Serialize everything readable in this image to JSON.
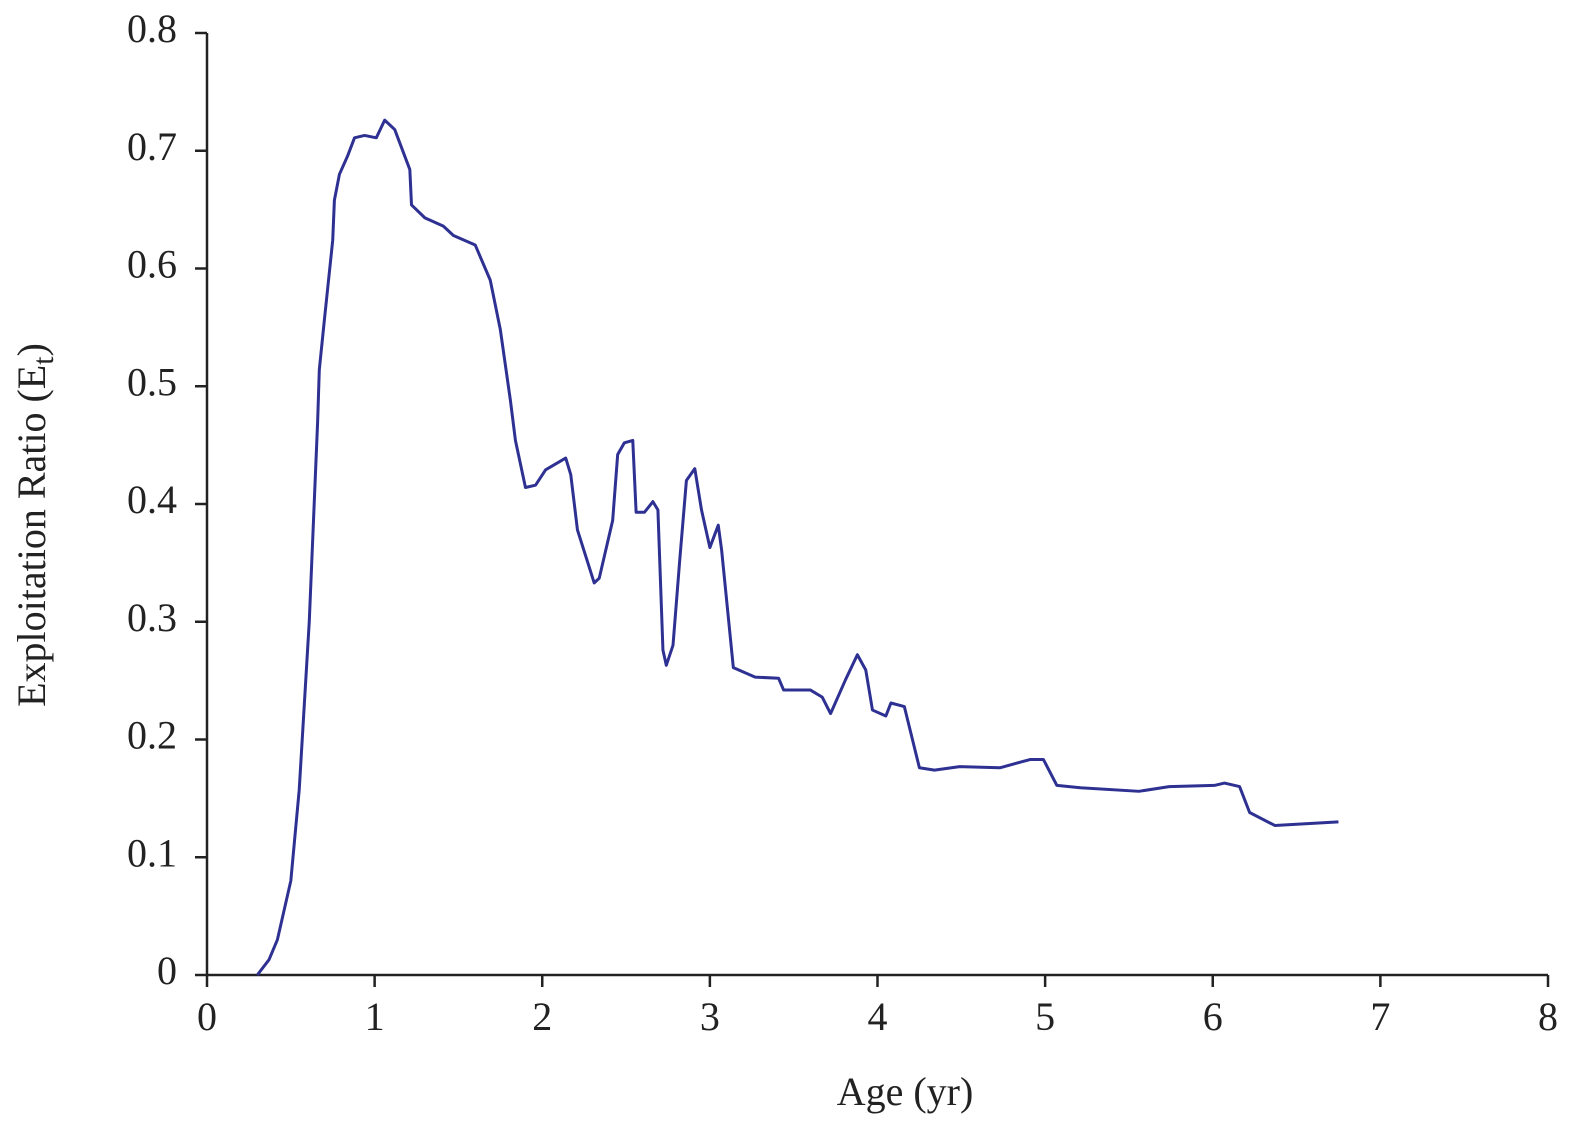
{
  "chart_data": {
    "type": "line",
    "xlabel": "Age (yr)",
    "ylabel": {
      "main": "Exploitation Ratio (E",
      "sub": "t",
      "close": ")"
    },
    "xlim": [
      0,
      8
    ],
    "xticks": [
      0,
      1,
      2,
      3,
      4,
      5,
      6,
      7,
      8
    ],
    "ylim": [
      0,
      0.8
    ],
    "yticks": [
      0,
      0.1,
      0.2,
      0.3,
      0.4,
      0.5,
      0.6,
      0.7,
      0.8
    ],
    "grid": false,
    "series": [
      {
        "color": "#2e3192",
        "x": [
          0.3,
          0.37,
          0.42,
          0.5,
          0.55,
          0.61,
          0.66,
          0.67,
          0.7,
          0.75,
          0.76,
          0.79,
          0.84,
          0.88,
          0.94,
          1.01,
          1.06,
          1.12,
          1.21,
          1.22,
          1.3,
          1.41,
          1.47,
          1.6,
          1.69,
          1.75,
          1.81,
          1.84,
          1.9,
          1.96,
          2.02,
          2.14,
          2.17,
          2.21,
          2.31,
          2.34,
          2.42,
          2.45,
          2.49,
          2.54,
          2.56,
          2.61,
          2.66,
          2.69,
          2.72,
          2.74,
          2.78,
          2.82,
          2.86,
          2.91,
          2.95,
          3.0,
          3.05,
          3.07,
          3.14,
          3.27,
          3.41,
          3.44,
          3.6,
          3.67,
          3.72,
          3.81,
          3.88,
          3.93,
          3.97,
          4.05,
          4.08,
          4.16,
          4.25,
          4.34,
          4.49,
          4.73,
          4.91,
          4.99,
          5.07,
          5.21,
          5.56,
          5.74,
          6.01,
          6.07,
          6.16,
          6.22,
          6.37,
          6.75
        ],
        "values": [
          0,
          0.013,
          0.03,
          0.08,
          0.157,
          0.3,
          0.47,
          0.514,
          0.556,
          0.624,
          0.658,
          0.68,
          0.696,
          0.711,
          0.713,
          0.711,
          0.726,
          0.718,
          0.684,
          0.654,
          0.643,
          0.636,
          0.628,
          0.62,
          0.59,
          0.548,
          0.488,
          0.454,
          0.414,
          0.416,
          0.429,
          0.439,
          0.425,
          0.378,
          0.333,
          0.337,
          0.386,
          0.442,
          0.452,
          0.454,
          0.393,
          0.393,
          0.402,
          0.395,
          0.276,
          0.263,
          0.28,
          0.352,
          0.42,
          0.43,
          0.395,
          0.363,
          0.382,
          0.361,
          0.261,
          0.253,
          0.252,
          0.242,
          0.242,
          0.236,
          0.222,
          0.251,
          0.272,
          0.259,
          0.225,
          0.22,
          0.231,
          0.228,
          0.176,
          0.174,
          0.177,
          0.176,
          0.183,
          0.183,
          0.161,
          0.159,
          0.156,
          0.16,
          0.161,
          0.163,
          0.16,
          0.138,
          0.127,
          0.13
        ]
      }
    ]
  }
}
